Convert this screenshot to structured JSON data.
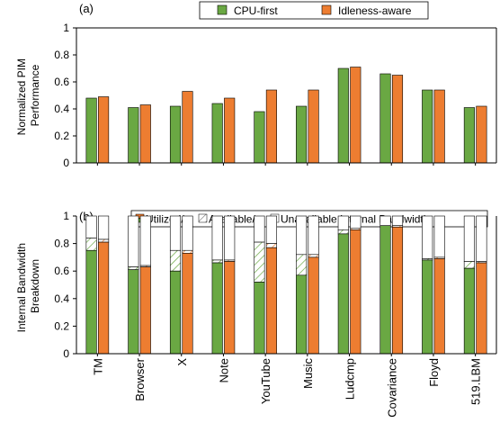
{
  "chart_data": [
    {
      "panel_label": "(a)",
      "type": "bar",
      "ylabel_lines": [
        "Normalized PIM",
        "Performance"
      ],
      "ylim": [
        0,
        1
      ],
      "yticks": [
        "0",
        "0.2",
        "0.4",
        "0.6",
        "0.8",
        "1"
      ],
      "legend_placement": "top",
      "categories": [
        "TM",
        "Browser",
        "X",
        "Note",
        "YouTube",
        "Music",
        "Ludcmp",
        "Covariance",
        "Floyd",
        "519.LBM"
      ],
      "series": [
        {
          "name": "CPU-first",
          "color": "#6aa843",
          "values": [
            0.48,
            0.41,
            0.42,
            0.44,
            0.38,
            0.42,
            0.7,
            0.66,
            0.54,
            0.41
          ]
        },
        {
          "name": "Idleness-aware",
          "color": "#ed7d31",
          "values": [
            0.49,
            0.43,
            0.53,
            0.48,
            0.54,
            0.54,
            0.71,
            0.65,
            0.54,
            0.42
          ]
        }
      ]
    },
    {
      "panel_label": "(b)",
      "type": "bar",
      "stacked": true,
      "ylabel_lines": [
        "Internal Bandwidth",
        "Breakdown"
      ],
      "ylim": [
        0,
        1
      ],
      "yticks": [
        "0",
        "0.2",
        "0.4",
        "0.6",
        "0.8",
        "1"
      ],
      "legend_placement": "top",
      "legend_items": [
        "Utilized/",
        "Available/",
        "Unavailable Internal Bandwidth"
      ],
      "categories": [
        "TM",
        "Browser",
        "X",
        "Note",
        "YouTube",
        "Music",
        "Ludcmp",
        "Covariance",
        "Floyd",
        "519.LBM"
      ],
      "policies": [
        {
          "color": "#6aa843",
          "utilized": [
            0.75,
            0.61,
            0.6,
            0.66,
            0.52,
            0.57,
            0.87,
            0.93,
            0.68,
            0.62
          ],
          "available": [
            0.09,
            0.02,
            0.15,
            0.02,
            0.29,
            0.15,
            0.03,
            0.0,
            0.01,
            0.05
          ]
        },
        {
          "color": "#ed7d31",
          "utilized": [
            0.81,
            0.63,
            0.73,
            0.67,
            0.77,
            0.7,
            0.9,
            0.92,
            0.69,
            0.66
          ],
          "available": [
            0.02,
            0.01,
            0.02,
            0.01,
            0.03,
            0.02,
            0.01,
            0.01,
            0.01,
            0.01
          ]
        }
      ]
    }
  ]
}
